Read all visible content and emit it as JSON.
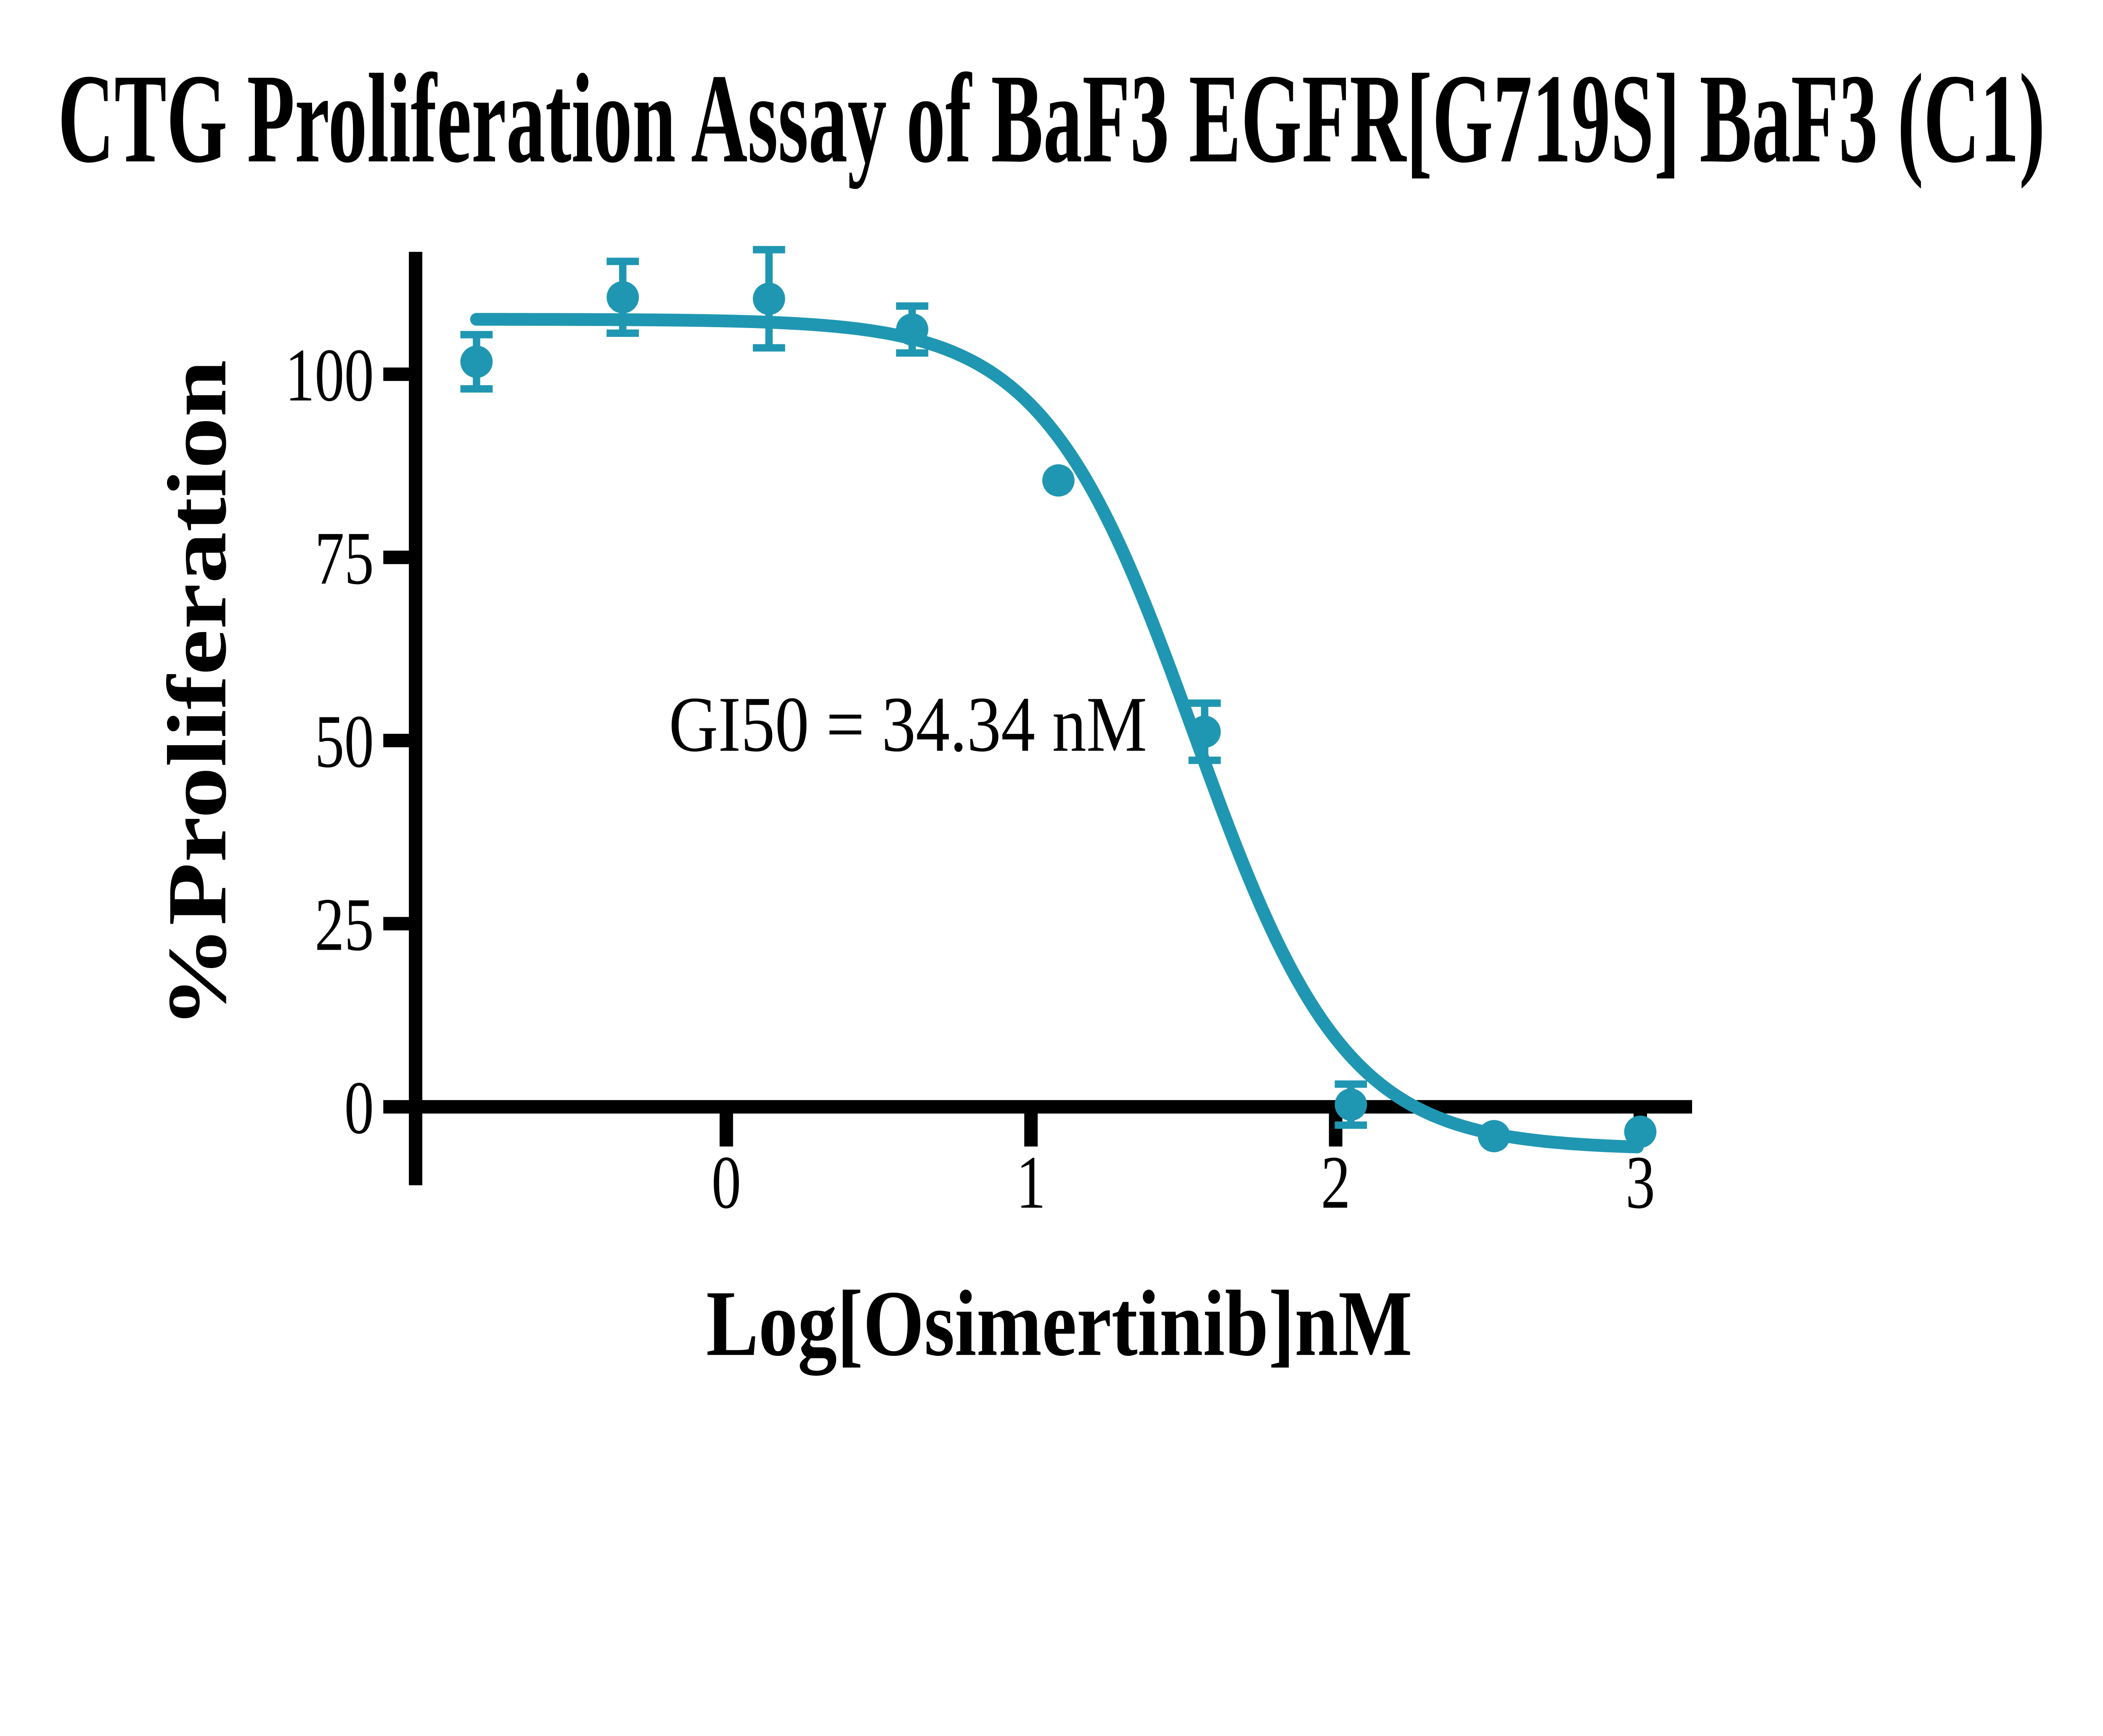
{
  "title": "CTG Proliferation Assay of BaF3 EGFR[G719S] BaF3 (C1)",
  "annotation": "GI50 = 34.34 nM",
  "chart_data": {
    "type": "scatter",
    "title": "CTG Proliferation Assay of BaF3 EGFR[G719S] BaF3 (C1)",
    "xlabel": "Log[Osimertinib]nM",
    "ylabel": "%Proliferation",
    "x_ticks": [
      0,
      1,
      2,
      3
    ],
    "y_ticks": [
      0,
      25,
      50,
      75,
      100
    ],
    "xlim": [
      -1.02,
      3.17
    ],
    "ylim": [
      -10.7,
      116.7
    ],
    "grid": false,
    "legend": "none",
    "series_name": "Osimertinib",
    "points": [
      {
        "x": -0.82,
        "y": 101.7,
        "err": 3.7
      },
      {
        "x": -0.34,
        "y": 110.5,
        "err": 4.9
      },
      {
        "x": 0.14,
        "y": 110.3,
        "err": 6.7
      },
      {
        "x": 0.61,
        "y": 106.1,
        "err": 3.2
      },
      {
        "x": 1.09,
        "y": 85.5,
        "err": null
      },
      {
        "x": 1.57,
        "y": 51.2,
        "err": 3.9
      },
      {
        "x": 2.05,
        "y": 0.3,
        "err": 2.8
      },
      {
        "x": 2.52,
        "y": -4.0,
        "err": null
      },
      {
        "x": 3.0,
        "y": -3.4,
        "err": null
      }
    ],
    "fit_curve": {
      "model": "four-parameter-logistic",
      "top": 107.5,
      "bottom": -5.8,
      "log_gi50": 1.536,
      "hill_slope": 1.75,
      "x_start": -0.82,
      "x_end": 3.0
    },
    "gi50_label_nM": 34.34,
    "colors": {
      "series": "#2097B2",
      "axis": "#000000",
      "background": "#ffffff"
    }
  }
}
